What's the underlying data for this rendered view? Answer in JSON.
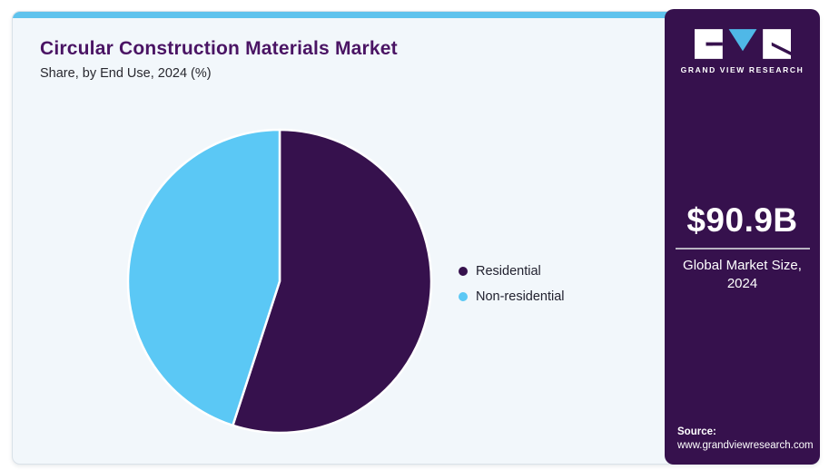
{
  "header": {
    "title": "Circular Construction Materials Market",
    "subtitle": "Share, by End Use, 2024 (%)"
  },
  "chart_data": {
    "type": "pie",
    "title": "Circular Construction Materials Market Share, by End Use, 2024 (%)",
    "labels": [
      "Residential",
      "Non-residential"
    ],
    "values": [
      55,
      45
    ],
    "unit": "%",
    "colors": [
      "#36114d",
      "#5bc8f5"
    ],
    "start_angle_deg": 0,
    "direction": "clockwise",
    "legend_position": "right"
  },
  "legend": {
    "items": [
      {
        "label": "Residential",
        "color": "#36114d"
      },
      {
        "label": "Non-residential",
        "color": "#5bc8f5"
      }
    ]
  },
  "sidebar": {
    "logo_text": "GRAND VIEW RESEARCH",
    "market_size": "$90.9B",
    "market_caption": "Global Market Size, 2024",
    "source_label": "Source:",
    "source_url": "www.grandviewresearch.com"
  },
  "colors": {
    "accent_bar": "#5fc3ed",
    "card_background": "#f2f7fb",
    "sidebar_background": "#36114d",
    "title_text": "#4a1464",
    "pie_stroke": "#ffffff",
    "logo_v_blue": "#4fb8e7"
  }
}
